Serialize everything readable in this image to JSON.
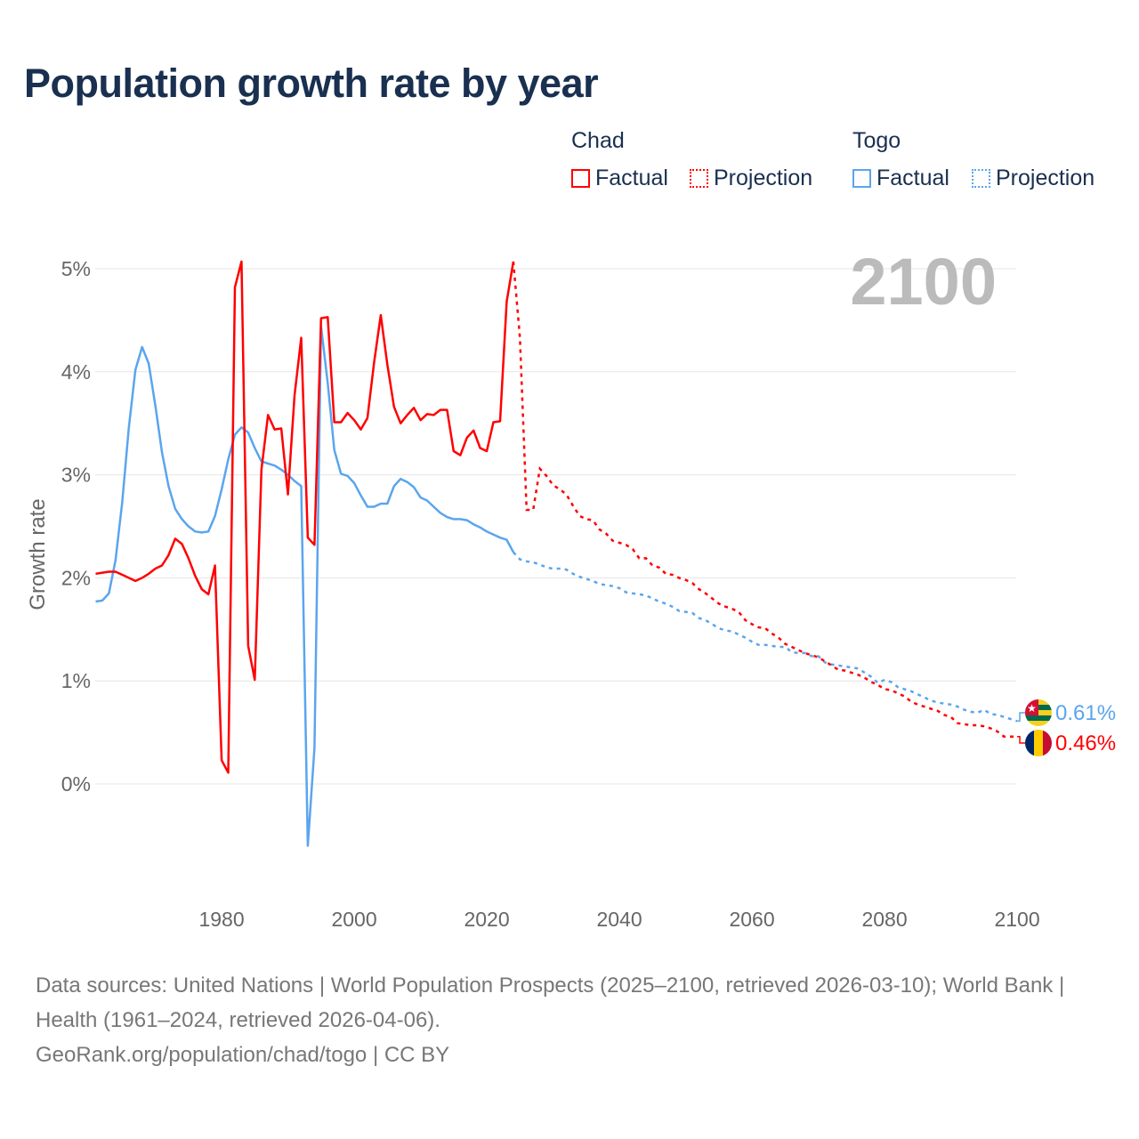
{
  "title": "Population growth rate by year",
  "legend": {
    "groups": [
      {
        "name": "Chad",
        "color": "#ff0000",
        "factual": "Factual",
        "projection": "Projection"
      },
      {
        "name": "Togo",
        "color": "#5aa5ee",
        "factual": "Factual",
        "projection": "Projection"
      }
    ]
  },
  "year_display": "2100",
  "footer": {
    "sources": "Data sources: United Nations | World Population Prospects (2025–2100, retrieved 2026-03-10); World Bank | Health (1961–2024, retrieved 2026-04-06).",
    "credit": "GeoRank.org/population/chad/togo | CC BY"
  },
  "chart_data": {
    "type": "line",
    "title": "Population growth rate by year",
    "xlabel": "",
    "ylabel": "Growth rate",
    "xlim": [
      1961,
      2100
    ],
    "ylim": [
      -0.9,
      5.2
    ],
    "x_ticks": [
      1980,
      2000,
      2020,
      2040,
      2060,
      2080,
      2100
    ],
    "x_tick_labels": [
      "1980",
      "2000",
      "2020",
      "2040",
      "2060",
      "2080",
      "2100"
    ],
    "y_ticks": [
      0,
      1,
      2,
      3,
      4,
      5
    ],
    "y_tick_labels": [
      "0%",
      "1%",
      "2%",
      "3%",
      "4%",
      "5%"
    ],
    "grid": true,
    "legend_position": "top-right",
    "series": [
      {
        "name": "Chad",
        "color": "#ff0000",
        "factual_start": 1961,
        "factual": [
          2.04,
          2.05,
          2.06,
          2.06,
          2.03,
          2.0,
          1.97,
          2.0,
          2.04,
          2.09,
          2.12,
          2.22,
          2.38,
          2.33,
          2.19,
          2.02,
          1.89,
          1.84,
          2.12,
          0.23,
          0.11,
          4.82,
          5.07,
          1.34,
          1.01,
          3.05,
          3.58,
          3.44,
          3.45,
          2.81,
          3.77,
          4.33,
          2.39,
          2.32,
          4.52,
          4.53,
          3.51,
          3.51,
          3.6,
          3.53,
          3.44,
          3.55,
          4.09,
          4.55,
          4.07,
          3.66,
          3.5,
          3.58,
          3.65,
          3.53,
          3.59,
          3.58,
          3.63,
          3.63,
          3.23,
          3.19,
          3.36,
          3.43,
          3.26,
          3.23,
          3.51,
          3.52,
          4.68,
          5.07
        ],
        "projection_start": 2024,
        "projection": [
          5.07,
          4.33,
          2.66,
          2.66,
          3.06,
          2.99,
          2.9,
          2.86,
          2.81,
          2.7,
          2.6,
          2.57,
          2.56,
          2.47,
          2.43,
          2.36,
          2.34,
          2.32,
          2.28,
          2.19,
          2.19,
          2.12,
          2.1,
          2.04,
          2.03,
          2.0,
          1.98,
          1.95,
          1.89,
          1.85,
          1.8,
          1.75,
          1.72,
          1.7,
          1.67,
          1.59,
          1.55,
          1.52,
          1.51,
          1.46,
          1.42,
          1.36,
          1.33,
          1.3,
          1.27,
          1.25,
          1.23,
          1.19,
          1.15,
          1.11,
          1.1,
          1.08,
          1.06,
          1.03,
          0.99,
          0.96,
          0.92,
          0.91,
          0.88,
          0.85,
          0.8,
          0.77,
          0.75,
          0.73,
          0.71,
          0.67,
          0.65,
          0.59,
          0.58,
          0.57,
          0.57,
          0.56,
          0.54,
          0.51,
          0.46,
          0.46,
          0.46
        ],
        "end_label": "0.46%"
      },
      {
        "name": "Togo",
        "color": "#5aa5ee",
        "factual_start": 1961,
        "factual": [
          1.77,
          1.78,
          1.85,
          2.17,
          2.73,
          3.46,
          4.02,
          4.24,
          4.08,
          3.67,
          3.22,
          2.89,
          2.67,
          2.57,
          2.5,
          2.45,
          2.44,
          2.45,
          2.6,
          2.86,
          3.15,
          3.39,
          3.46,
          3.41,
          3.26,
          3.13,
          3.11,
          3.09,
          3.05,
          3.0,
          2.94,
          2.89,
          -0.6,
          0.35,
          4.44,
          3.89,
          3.24,
          3.01,
          2.99,
          2.92,
          2.8,
          2.69,
          2.69,
          2.72,
          2.72,
          2.89,
          2.96,
          2.93,
          2.88,
          2.78,
          2.75,
          2.69,
          2.63,
          2.59,
          2.57,
          2.57,
          2.56,
          2.52,
          2.49,
          2.45,
          2.42,
          2.39,
          2.37,
          2.25
        ],
        "projection_start": 2024,
        "projection": [
          2.25,
          2.18,
          2.16,
          2.15,
          2.13,
          2.1,
          2.09,
          2.09,
          2.08,
          2.04,
          2.01,
          1.99,
          1.97,
          1.94,
          1.93,
          1.92,
          1.9,
          1.86,
          1.85,
          1.84,
          1.83,
          1.8,
          1.77,
          1.75,
          1.72,
          1.68,
          1.67,
          1.66,
          1.61,
          1.59,
          1.55,
          1.51,
          1.49,
          1.48,
          1.45,
          1.42,
          1.38,
          1.35,
          1.35,
          1.34,
          1.33,
          1.33,
          1.28,
          1.27,
          1.27,
          1.24,
          1.24,
          1.18,
          1.16,
          1.15,
          1.14,
          1.13,
          1.12,
          1.08,
          1.04,
          0.98,
          1.01,
          0.99,
          0.94,
          0.92,
          0.9,
          0.87,
          0.84,
          0.81,
          0.79,
          0.78,
          0.77,
          0.75,
          0.72,
          0.7,
          0.69,
          0.72,
          0.68,
          0.67,
          0.65,
          0.63,
          0.61
        ],
        "end_label": "0.61%"
      }
    ]
  }
}
